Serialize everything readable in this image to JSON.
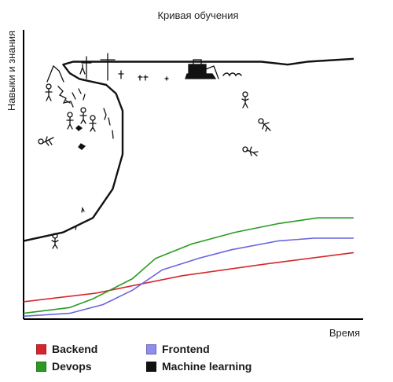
{
  "chart_data": {
    "type": "line",
    "title": "Кривая обучения",
    "xlabel": "Время",
    "ylabel": "Навыки и знания",
    "xlim": [
      0,
      100
    ],
    "ylim": [
      0,
      100
    ],
    "grid": false,
    "legend_position": "bottom",
    "series": [
      {
        "name": "Backend",
        "color": "#d7262b",
        "points": [
          [
            0,
            6
          ],
          [
            22,
            9
          ],
          [
            48,
            15
          ],
          [
            73,
            19
          ],
          [
            100,
            23
          ]
        ]
      },
      {
        "name": "Frontend",
        "color": "#6a64e0",
        "points": [
          [
            0,
            1
          ],
          [
            14,
            2
          ],
          [
            24,
            5
          ],
          [
            33,
            10
          ],
          [
            42,
            17
          ],
          [
            53,
            21
          ],
          [
            63,
            24
          ],
          [
            77,
            27
          ],
          [
            88,
            28
          ],
          [
            100,
            28
          ]
        ]
      },
      {
        "name": "Devops",
        "color": "#2a9a22",
        "points": [
          [
            0,
            2
          ],
          [
            14,
            4
          ],
          [
            21,
            7
          ],
          [
            33,
            14
          ],
          [
            40,
            21
          ],
          [
            51,
            26
          ],
          [
            64,
            30
          ],
          [
            77,
            33
          ],
          [
            89,
            35
          ],
          [
            100,
            35
          ]
        ]
      },
      {
        "name": "Machine learning",
        "color": "#111111",
        "points": [
          [
            0,
            27
          ],
          [
            12,
            30
          ],
          [
            21,
            35
          ],
          [
            27,
            45
          ],
          [
            30,
            57
          ],
          [
            30,
            72
          ],
          [
            28,
            78
          ],
          [
            25,
            81
          ],
          [
            17,
            83
          ],
          [
            14,
            85
          ],
          [
            12,
            88
          ],
          [
            15,
            89
          ],
          [
            35,
            89
          ],
          [
            60,
            89
          ],
          [
            72,
            89
          ],
          [
            80,
            88
          ],
          [
            86,
            89
          ],
          [
            100,
            90
          ]
        ]
      }
    ],
    "legend": [
      {
        "name": "Backend",
        "color": "#d7262b"
      },
      {
        "name": "Frontend",
        "color": "#8f8cf2"
      },
      {
        "name": "Devops",
        "color": "#2a9a22"
      },
      {
        "name": "Machine learning",
        "color": "#111111"
      }
    ],
    "illustration": [
      "stick-figures-falling",
      "crosses-on-plateau",
      "bulldozer-on-plateau",
      "stick-figure-climbing"
    ]
  }
}
